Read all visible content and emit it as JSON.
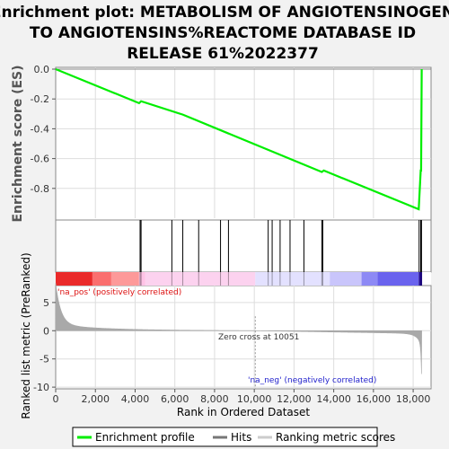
{
  "chart_data": {
    "type": "line",
    "title_lines": [
      "Enrichment plot: METABOLISM OF ANGIOTENSINOGEN",
      "TO ANGIOTENSINS%REACTOME DATABASE ID",
      "RELEASE 61%2022377"
    ],
    "es_ylabel": "Enrichment score (ES)",
    "metric_ylabel": "Ranked list metric (PreRanked)",
    "xlabel": "Rank in Ordered Dataset",
    "x_range": [
      0,
      18900
    ],
    "es_range": [
      -1.0,
      0.0
    ],
    "metric_range": [
      -10.3,
      8.0
    ],
    "x_ticks": [
      0,
      2000,
      4000,
      6000,
      8000,
      10000,
      12000,
      14000,
      16000,
      18000
    ],
    "x_tick_labels": [
      "0",
      "2,000",
      "4,000",
      "6,000",
      "8,000",
      "10,000",
      "12,000",
      "14,000",
      "16,000",
      "18,000"
    ],
    "es_ticks": [
      0.0,
      -0.2,
      -0.4,
      -0.6,
      -0.8
    ],
    "es_tick_labels": [
      "0.0",
      "-0.2",
      "-0.4",
      "-0.6",
      "-0.8"
    ],
    "metric_ticks": [
      5,
      0,
      -5,
      -10
    ],
    "metric_tick_labels": [
      "5",
      "0",
      "-5",
      "-10"
    ],
    "grid": true,
    "enrichment_profile": {
      "x": [
        0,
        4200,
        4300,
        6400,
        13400,
        13500,
        18280,
        18380,
        18400,
        18430
      ],
      "y": [
        0.0,
        -0.228,
        -0.215,
        -0.305,
        -0.69,
        -0.68,
        -0.94,
        -0.68,
        -0.68,
        0.0
      ]
    },
    "hits": [
      4250,
      4300,
      5850,
      6400,
      7200,
      8300,
      8700,
      10700,
      10900,
      11300,
      11800,
      12500,
      13400,
      13450,
      18300,
      18380,
      18420
    ],
    "zero_cross_label": "Zero cross at 10051",
    "zero_cross_x": 10051,
    "pos_label": "'na_pos' (positively correlated)",
    "neg_label": "'na_neg' (negatively correlated)",
    "legend": [
      {
        "label": "Enrichment profile",
        "color": "#00ee00"
      },
      {
        "label": "Hits",
        "color": "#777777"
      },
      {
        "label": "Ranking metric scores",
        "color": "#cccccc"
      }
    ],
    "colors": {
      "profile": "#00ee00",
      "pos_text": "#dd1111",
      "neg_text": "#2222cc",
      "heat_bands": [
        "#ea2a2a",
        "#fa6f6f",
        "#fd9999",
        "#ffc2e6",
        "#fcd2ef",
        "#e3e1ff",
        "#c9c5fb",
        "#8d89f5",
        "#6a63ee",
        "#2a0ab5"
      ],
      "heat_stops": [
        0,
        1850,
        2800,
        4200,
        4500,
        10051,
        13800,
        15400,
        16200,
        18300,
        18450
      ]
    }
  }
}
